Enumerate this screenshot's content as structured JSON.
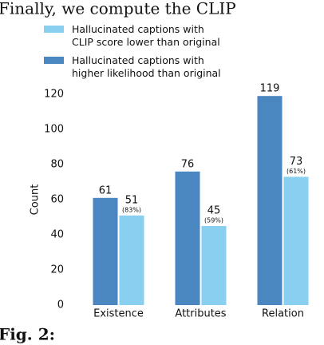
{
  "header": {
    "text": "Finally, we compute the CLIP"
  },
  "chart_data": {
    "type": "bar",
    "y_label": "Count",
    "categories": [
      "Existence",
      "Attributes",
      "Relation"
    ],
    "series": [
      {
        "name": "Hallucinated captions with\nhigher likelihood than original",
        "color": "#4a86bf",
        "values": [
          61,
          76,
          119
        ]
      },
      {
        "name": "Hallucinated captions with\nCLIP score lower than original",
        "color": "#88cff0",
        "values": [
          51,
          45,
          73
        ],
        "percent_labels": [
          "(83%)",
          "(59%)",
          "(61%)"
        ]
      }
    ],
    "ylim": [
      0,
      125
    ],
    "yticks": [
      0,
      20,
      40,
      60,
      80,
      100,
      120
    ],
    "grid": false
  },
  "footer": {
    "text": "Fig. 2:"
  }
}
